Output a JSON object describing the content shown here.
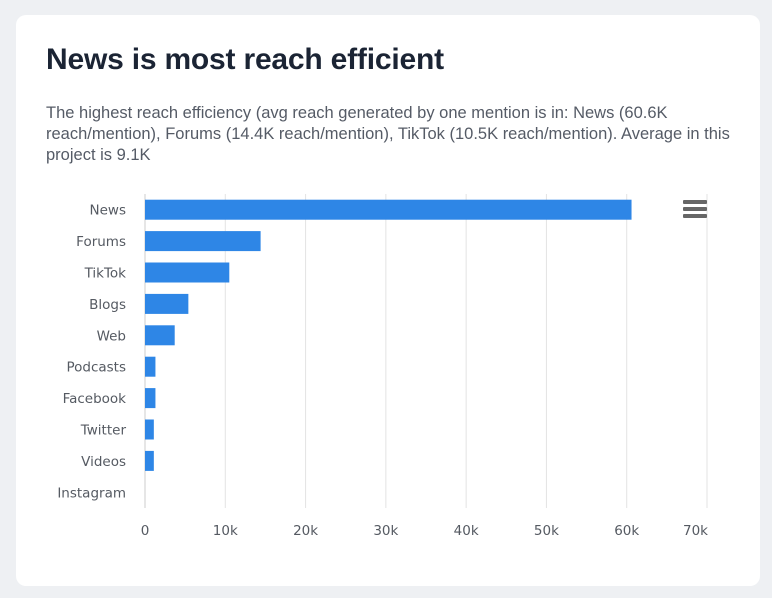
{
  "card": {
    "title": "News is most reach efficient",
    "description": "The highest reach efficiency (avg reach generated by one mention is in: News (60.6K reach/mention), Forums (14.4K reach/mention), TikTok (10.5K reach/mention). Average in this project is 9.1K"
  },
  "menu": {
    "icon": "hamburger-menu-icon"
  },
  "colors": {
    "bar": "#2e86e6",
    "grid": "#e3e3e3",
    "axis": "#cccccc"
  },
  "chart_data": {
    "type": "bar",
    "orientation": "horizontal",
    "categories": [
      "News",
      "Forums",
      "TikTok",
      "Blogs",
      "Web",
      "Podcasts",
      "Facebook",
      "Twitter",
      "Videos",
      "Instagram"
    ],
    "values": [
      60600,
      14400,
      10500,
      5400,
      3700,
      1300,
      1300,
      1100,
      1100,
      0
    ],
    "xlim": [
      0,
      70000
    ],
    "ticks": [
      0,
      10000,
      20000,
      30000,
      40000,
      50000,
      60000,
      70000
    ],
    "tick_labels": [
      "0",
      "10k",
      "20k",
      "30k",
      "40k",
      "50k",
      "60k",
      "70k"
    ],
    "grid": true,
    "legend": "none"
  }
}
